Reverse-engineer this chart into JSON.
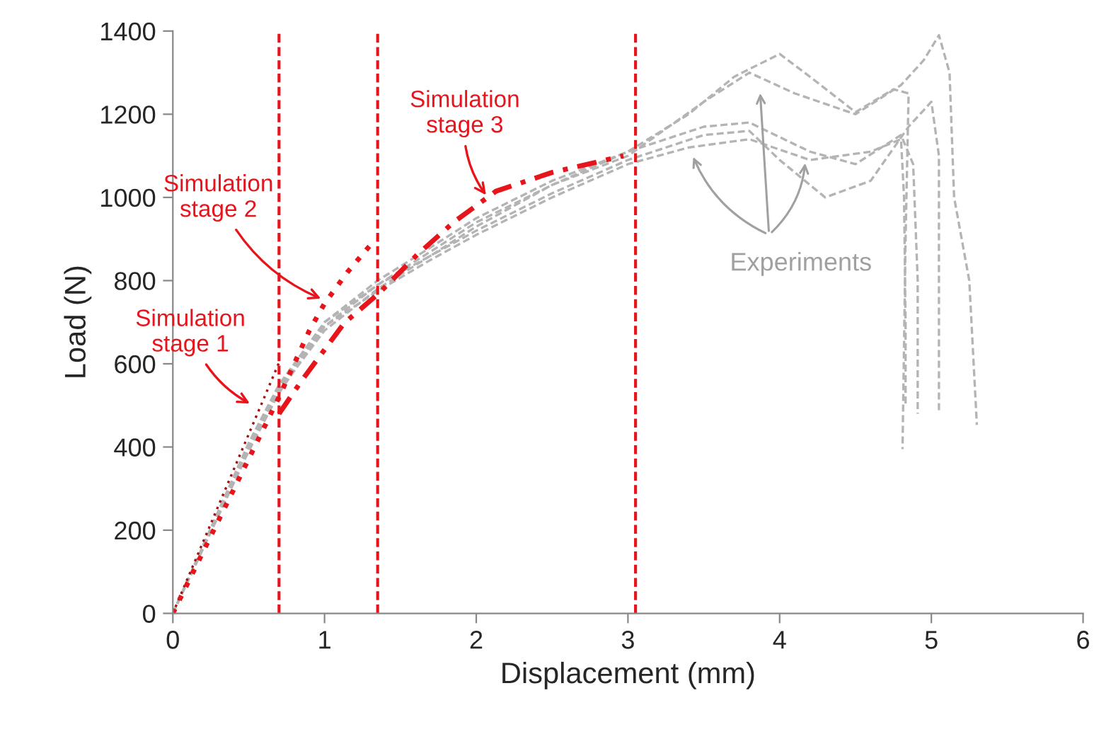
{
  "chart_data": {
    "type": "line",
    "xlabel": "Displacement (mm)",
    "ylabel": "Load (N)",
    "xlim": [
      0,
      6
    ],
    "ylim": [
      0,
      1400
    ],
    "xticks": [
      0,
      1,
      2,
      3,
      4,
      5,
      6
    ],
    "yticks": [
      0,
      200,
      400,
      600,
      800,
      1000,
      1200,
      1400
    ],
    "grid": false,
    "legend": false,
    "marker": "none",
    "series": [
      {
        "color": "#b4b4b4",
        "line_style": "dashed",
        "x": [
          0,
          0.5,
          0.7,
          1.0,
          1.35,
          1.7,
          2.0,
          2.5,
          3.0,
          3.4,
          3.7,
          4.0,
          4.2,
          4.5,
          4.75,
          4.85,
          4.83,
          4.81
        ],
        "values": [
          0,
          400,
          540,
          700,
          800,
          880,
          950,
          1040,
          1110,
          1200,
          1290,
          1345,
          1290,
          1205,
          1260,
          1250,
          900,
          395
        ]
      },
      {
        "color": "#b4b4b4",
        "line_style": "dashed",
        "x": [
          0,
          0.5,
          0.7,
          1.0,
          1.35,
          1.7,
          2.0,
          2.5,
          3.0,
          3.5,
          3.8,
          4.1,
          4.5,
          4.8,
          4.95,
          5.05,
          5.12,
          5.15,
          5.25,
          5.3
        ],
        "values": [
          0,
          390,
          530,
          690,
          790,
          870,
          940,
          1030,
          1100,
          1230,
          1300,
          1250,
          1200,
          1270,
          1330,
          1390,
          1300,
          1000,
          800,
          453
        ]
      },
      {
        "color": "#b4b4b4",
        "line_style": "dashed",
        "x": [
          0,
          0.5,
          0.7,
          1.0,
          1.35,
          1.7,
          2.0,
          2.5,
          3.0,
          3.5,
          3.8,
          4.2,
          4.5,
          4.8,
          4.88,
          4.91,
          4.91
        ],
        "values": [
          0,
          410,
          550,
          700,
          790,
          860,
          930,
          1030,
          1110,
          1170,
          1180,
          1110,
          1080,
          1150,
          1080,
          800,
          480
        ]
      },
      {
        "color": "#b4b4b4",
        "line_style": "dashed",
        "x": [
          0,
          0.5,
          0.7,
          1.0,
          1.35,
          1.7,
          2.0,
          2.5,
          3.0,
          3.5,
          3.8,
          4.0,
          4.3,
          4.6,
          4.85,
          5.0,
          5.05,
          5.05
        ],
        "values": [
          0,
          395,
          535,
          680,
          780,
          860,
          920,
          1010,
          1090,
          1150,
          1160,
          1090,
          1000,
          1040,
          1170,
          1230,
          1100,
          480
        ]
      },
      {
        "color": "#b4b4b4",
        "line_style": "dashed",
        "x": [
          0,
          0.5,
          0.7,
          1.0,
          1.35,
          1.7,
          2.0,
          2.5,
          3.0,
          3.4,
          3.8,
          4.2,
          4.6,
          4.8,
          4.82,
          4.83,
          4.83
        ],
        "values": [
          0,
          405,
          545,
          690,
          775,
          850,
          910,
          1000,
          1080,
          1120,
          1140,
          1090,
          1110,
          1140,
          1000,
          700,
          500
        ]
      },
      {
        "color": "#a01010",
        "line_style": "dotted",
        "x": [
          0,
          0.7
        ],
        "values": [
          0,
          603
        ]
      },
      {
        "color": "#e8141b",
        "line_style": "dotted",
        "x": [
          0,
          0.35,
          0.7,
          0.9,
          1.0,
          1.15,
          1.31
        ],
        "values": [
          0,
          260,
          520,
          680,
          745,
          820,
          889
        ]
      },
      {
        "color": "#e8141b",
        "line_style": "dashdot",
        "x": [
          0.7,
          0.85,
          1.13,
          1.36,
          1.61,
          1.85,
          2.13,
          2.5,
          2.97
        ],
        "values": [
          480,
          560,
          698,
          770,
          862,
          940,
          1015,
          1060,
          1100
        ]
      }
    ],
    "ref_lines": [
      {
        "axis": "x",
        "value": 0.7,
        "color": "#e8141b",
        "line_style": "dashed"
      },
      {
        "axis": "x",
        "value": 1.35,
        "color": "#e8141b",
        "line_style": "dashed"
      },
      {
        "axis": "x",
        "value": 3.05,
        "color": "#e8141b",
        "line_style": "dashed"
      }
    ],
    "annotations": [
      {
        "text": "Simulation\nstage 1",
        "x": 0.53,
        "y": 500
      },
      {
        "text": "Simulation\nstage 2",
        "x": 1.0,
        "y": 753
      },
      {
        "text": "Simulation\nstage 3",
        "x": 2.08,
        "y": 998
      },
      "Experiments"
    ]
  }
}
